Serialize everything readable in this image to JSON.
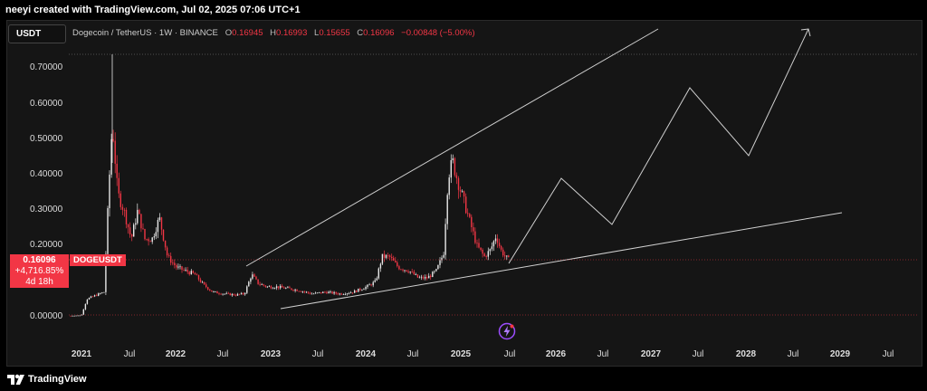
{
  "header": {
    "title": "neeyi created with TradingView.com, Jul 02, 2025 07:06 UTC+1"
  },
  "toolbar": {
    "symbol_box": "USDT"
  },
  "legend": {
    "name": "Dogecoin / TetherUS · 1W · BINANCE",
    "open_key": "O",
    "open": "0.16945",
    "high_key": "H",
    "high": "0.16993",
    "low_key": "L",
    "low": "0.15655",
    "close_key": "C",
    "close": "0.16096",
    "change": "−0.00848 (−5.00%)"
  },
  "price_tag": {
    "price": "0.16096",
    "change_pct": "+4,716.85%",
    "countdown": "4d 18h",
    "symbol": "DOGEUSDT"
  },
  "y_axis": [
    "0.70000",
    "0.60000",
    "0.50000",
    "0.40000",
    "0.30000",
    "0.20000",
    "0.00000"
  ],
  "x_axis": [
    {
      "label": "2021",
      "year": true
    },
    {
      "label": "Jul",
      "year": false
    },
    {
      "label": "2022",
      "year": true
    },
    {
      "label": "Jul",
      "year": false
    },
    {
      "label": "2023",
      "year": true
    },
    {
      "label": "Jul",
      "year": false
    },
    {
      "label": "2024",
      "year": true
    },
    {
      "label": "Jul",
      "year": false
    },
    {
      "label": "2025",
      "year": true
    },
    {
      "label": "Jul",
      "year": false
    },
    {
      "label": "2026",
      "year": true
    },
    {
      "label": "Jul",
      "year": false
    },
    {
      "label": "2027",
      "year": true
    },
    {
      "label": "Jul",
      "year": false
    },
    {
      "label": "2028",
      "year": true
    },
    {
      "label": "Jul",
      "year": false
    },
    {
      "label": "2029",
      "year": true
    },
    {
      "label": "Jul",
      "year": false
    }
  ],
  "footer": {
    "brand": "TradingView"
  },
  "colors": {
    "up": "#e8e8e8",
    "down": "#f23645",
    "background": "#151515",
    "lines": "#d0d0d0"
  },
  "icons": {
    "logo": "tradingview-logo-icon",
    "bolt": "lightning-icon"
  }
}
